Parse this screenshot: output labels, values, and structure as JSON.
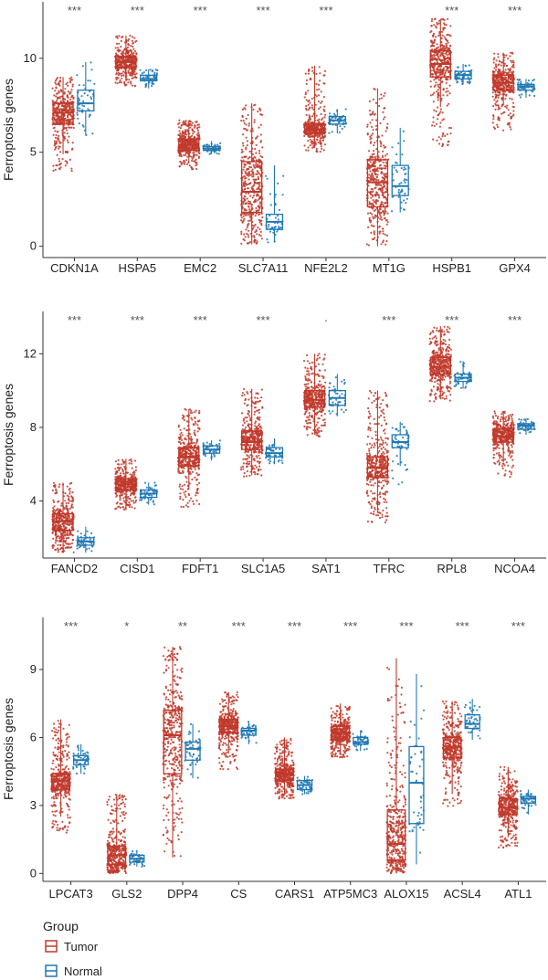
{
  "colors": {
    "tumor": "#C0392B",
    "normal": "#1F78B4",
    "axis": "#333333",
    "sig": "#555555"
  },
  "chart_data": [
    {
      "type": "box",
      "ylabel": "Ferroptosis genes",
      "ylim": [
        -0.6,
        13
      ],
      "yticks": [
        0,
        5,
        10
      ],
      "groups": [
        "Tumor",
        "Normal"
      ],
      "categories": [
        "CDKN1A",
        "HSPA5",
        "EMC2",
        "SLC7A11",
        "NFE2L2",
        "MT1G",
        "HSPB1",
        "GPX4"
      ],
      "significance": [
        "***",
        "***",
        "***",
        "***",
        "***",
        "",
        "***",
        "***"
      ],
      "series": [
        {
          "name": "Tumor",
          "stats": [
            {
              "min": 4.0,
              "q1": 6.5,
              "median": 7.1,
              "q3": 7.6,
              "max": 9.0,
              "wmin": 4.9
            },
            {
              "min": 8.5,
              "q1": 9.5,
              "median": 9.8,
              "q3": 10.1,
              "max": 11.2,
              "wmin": 8.8
            },
            {
              "min": 4.1,
              "q1": 5.1,
              "median": 5.4,
              "q3": 5.7,
              "max": 6.7,
              "wmin": 4.4
            },
            {
              "min": 0.1,
              "q1": 1.8,
              "median": 2.9,
              "q3": 4.5,
              "max": 7.6,
              "wmin": 0.1
            },
            {
              "min": 5.0,
              "q1": 6.0,
              "median": 6.2,
              "q3": 6.5,
              "max": 9.6,
              "wmin": 5.3
            },
            {
              "min": 0.0,
              "q1": 2.1,
              "median": 3.4,
              "q3": 4.6,
              "max": 8.4,
              "wmin": 0.0
            },
            {
              "min": 5.3,
              "q1": 9.0,
              "median": 9.7,
              "q3": 10.4,
              "max": 12.1,
              "wmin": 7.4
            },
            {
              "min": 6.0,
              "q1": 8.3,
              "median": 8.7,
              "q3": 9.1,
              "max": 10.3,
              "wmin": 7.5
            }
          ]
        },
        {
          "name": "Normal",
          "stats": [
            {
              "min": 5.9,
              "q1": 7.2,
              "median": 7.6,
              "q3": 8.3,
              "max": 9.8,
              "wmin": 5.9
            },
            {
              "min": 8.4,
              "q1": 8.8,
              "median": 8.9,
              "q3": 9.1,
              "max": 9.4,
              "wmin": 8.4
            },
            {
              "min": 4.9,
              "q1": 5.1,
              "median": 5.2,
              "q3": 5.3,
              "max": 5.6,
              "wmin": 4.9
            },
            {
              "min": 0.2,
              "q1": 0.9,
              "median": 1.3,
              "q3": 1.7,
              "max": 4.3,
              "wmin": 0.2
            },
            {
              "min": 6.0,
              "q1": 6.5,
              "median": 6.7,
              "q3": 6.9,
              "max": 7.3,
              "wmin": 6.0
            },
            {
              "min": 1.8,
              "q1": 2.7,
              "median": 3.2,
              "q3": 4.3,
              "max": 6.3,
              "wmin": 1.8
            },
            {
              "min": 8.6,
              "q1": 8.9,
              "median": 9.1,
              "q3": 9.3,
              "max": 9.7,
              "wmin": 8.6
            },
            {
              "min": 7.9,
              "q1": 8.3,
              "median": 8.5,
              "q3": 8.6,
              "max": 8.9,
              "wmin": 7.9
            }
          ]
        }
      ]
    },
    {
      "type": "box",
      "ylabel": "Ferroptosis genes",
      "ylim": [
        0.9,
        14.3
      ],
      "yticks": [
        4,
        8,
        12
      ],
      "groups": [
        "Tumor",
        "Normal"
      ],
      "categories": [
        "FANCD2",
        "CISD1",
        "FDFT1",
        "SLC1A5",
        "SAT1",
        "TFRC",
        "RPL8",
        "NCOA4"
      ],
      "significance": [
        "***",
        "***",
        "***",
        "***",
        "·",
        "***",
        "***",
        "***"
      ],
      "series": [
        {
          "name": "Tumor",
          "stats": [
            {
              "min": 1.2,
              "q1": 2.4,
              "median": 2.9,
              "q3": 3.3,
              "max": 5.0,
              "wmin": 1.2
            },
            {
              "min": 3.5,
              "q1": 4.6,
              "median": 4.9,
              "q3": 5.2,
              "max": 6.3,
              "wmin": 3.5
            },
            {
              "min": 3.6,
              "q1": 5.9,
              "median": 6.4,
              "q3": 6.9,
              "max": 9.0,
              "wmin": 4.6
            },
            {
              "min": 5.3,
              "q1": 6.8,
              "median": 7.2,
              "q3": 7.8,
              "max": 10.1,
              "wmin": 5.4
            },
            {
              "min": 7.5,
              "q1": 9.1,
              "median": 9.5,
              "q3": 10.0,
              "max": 12.0,
              "wmin": 7.6
            },
            {
              "min": 2.8,
              "q1": 5.3,
              "median": 5.8,
              "q3": 6.4,
              "max": 10.0,
              "wmin": 3.4
            },
            {
              "min": 9.4,
              "q1": 10.9,
              "median": 11.3,
              "q3": 11.8,
              "max": 13.5,
              "wmin": 9.6
            },
            {
              "min": 5.3,
              "q1": 7.2,
              "median": 7.5,
              "q3": 7.9,
              "max": 8.9,
              "wmin": 6.1
            }
          ]
        },
        {
          "name": "Normal",
          "stats": [
            {
              "min": 1.2,
              "q1": 1.6,
              "median": 1.8,
              "q3": 2.0,
              "max": 2.6,
              "wmin": 1.2
            },
            {
              "min": 3.8,
              "q1": 4.2,
              "median": 4.4,
              "q3": 4.6,
              "max": 5.0,
              "wmin": 3.8
            },
            {
              "min": 6.2,
              "q1": 6.6,
              "median": 6.8,
              "q3": 7.0,
              "max": 7.3,
              "wmin": 6.2
            },
            {
              "min": 6.0,
              "q1": 6.4,
              "median": 6.6,
              "q3": 6.9,
              "max": 7.4,
              "wmin": 6.0
            },
            {
              "min": 8.6,
              "q1": 9.2,
              "median": 9.6,
              "q3": 10.0,
              "max": 10.9,
              "wmin": 8.6
            },
            {
              "min": 4.8,
              "q1": 6.9,
              "median": 7.2,
              "q3": 7.6,
              "max": 8.3,
              "wmin": 5.9
            },
            {
              "min": 10.1,
              "q1": 10.5,
              "median": 10.7,
              "q3": 10.9,
              "max": 11.6,
              "wmin": 10.1
            },
            {
              "min": 7.6,
              "q1": 7.9,
              "median": 8.1,
              "q3": 8.2,
              "max": 8.5,
              "wmin": 7.6
            }
          ]
        }
      ]
    },
    {
      "type": "box",
      "ylabel": "Ferroptosis genes",
      "ylim": [
        -0.35,
        11.3
      ],
      "yticks": [
        0,
        3,
        6,
        9
      ],
      "groups": [
        "Tumor",
        "Normal"
      ],
      "categories": [
        "LPCAT3",
        "GLS2",
        "DPP4",
        "CS",
        "CARS1",
        "ATP5MC3",
        "ALOX15",
        "ACSL4",
        "ATL1"
      ],
      "significance": [
        "***",
        "*",
        "**",
        "***",
        "***",
        "***",
        "***",
        "***",
        "***"
      ],
      "series": [
        {
          "name": "Tumor",
          "stats": [
            {
              "min": 1.8,
              "q1": 3.7,
              "median": 4.1,
              "q3": 4.4,
              "max": 6.8,
              "wmin": 2.5
            },
            {
              "min": 0.0,
              "q1": 0.4,
              "median": 0.8,
              "q3": 1.2,
              "max": 3.5,
              "wmin": 0.0
            },
            {
              "min": 0.7,
              "q1": 4.4,
              "median": 6.1,
              "q3": 7.2,
              "max": 10.0,
              "wmin": 0.7
            },
            {
              "min": 4.6,
              "q1": 6.2,
              "median": 6.5,
              "q3": 6.8,
              "max": 8.0,
              "wmin": 5.3
            },
            {
              "min": 3.3,
              "q1": 4.1,
              "median": 4.4,
              "q3": 4.6,
              "max": 6.0,
              "wmin": 3.5
            },
            {
              "min": 5.1,
              "q1": 5.9,
              "median": 6.2,
              "q3": 6.5,
              "max": 7.5,
              "wmin": 5.3
            },
            {
              "min": 0.0,
              "q1": 0.6,
              "median": 1.3,
              "q3": 2.8,
              "max": 9.5,
              "wmin": 0.0
            },
            {
              "min": 2.9,
              "q1": 5.1,
              "median": 5.6,
              "q3": 6.0,
              "max": 7.6,
              "wmin": 3.5
            },
            {
              "min": 1.1,
              "q1": 2.6,
              "median": 2.9,
              "q3": 3.3,
              "max": 4.7,
              "wmin": 1.6
            }
          ]
        },
        {
          "name": "Normal",
          "stats": [
            {
              "min": 4.4,
              "q1": 4.8,
              "median": 5.0,
              "q3": 5.2,
              "max": 5.7,
              "wmin": 4.4
            },
            {
              "min": 0.3,
              "q1": 0.5,
              "median": 0.65,
              "q3": 0.8,
              "max": 1.0,
              "wmin": 0.3
            },
            {
              "min": 4.2,
              "q1": 5.0,
              "median": 5.5,
              "q3": 5.8,
              "max": 6.6,
              "wmin": 4.2
            },
            {
              "min": 5.7,
              "q1": 6.1,
              "median": 6.3,
              "q3": 6.4,
              "max": 6.7,
              "wmin": 5.7
            },
            {
              "min": 3.5,
              "q1": 3.7,
              "median": 3.9,
              "q3": 4.1,
              "max": 4.3,
              "wmin": 3.5
            },
            {
              "min": 5.4,
              "q1": 5.7,
              "median": 5.8,
              "q3": 6.0,
              "max": 6.3,
              "wmin": 5.4
            },
            {
              "min": 0.4,
              "q1": 2.2,
              "median": 4.0,
              "q3": 5.6,
              "max": 8.8,
              "wmin": 0.4
            },
            {
              "min": 5.9,
              "q1": 6.4,
              "median": 6.6,
              "q3": 7.0,
              "max": 7.7,
              "wmin": 5.9
            },
            {
              "min": 2.6,
              "q1": 3.1,
              "median": 3.3,
              "q3": 3.4,
              "max": 3.7,
              "wmin": 2.6
            }
          ]
        }
      ]
    }
  ],
  "legend": {
    "title": "Group",
    "items": [
      {
        "label": "Tumor",
        "color": "#C0392B"
      },
      {
        "label": "Normal",
        "color": "#1F78B4"
      }
    ]
  }
}
